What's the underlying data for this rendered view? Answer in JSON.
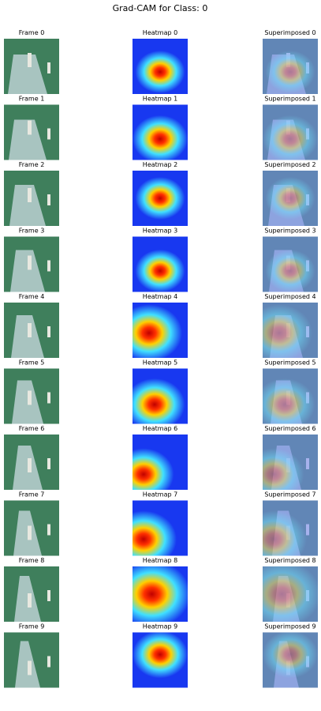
{
  "title": "Grad-CAM for Class: 0",
  "rows": [
    {
      "frame": "Frame 0",
      "heatmap": "Heatmap 0",
      "superimposed": "Superimposed 0"
    },
    {
      "frame": "Frame 1",
      "heatmap": "Heatmap 1",
      "superimposed": "Superimposed 1"
    },
    {
      "frame": "Frame 2",
      "heatmap": "Heatmap 2",
      "superimposed": "Superimposed 2"
    },
    {
      "frame": "Frame 3",
      "heatmap": "Heatmap 3",
      "superimposed": "Superimposed 3"
    },
    {
      "frame": "Frame 4",
      "heatmap": "Heatmap 4",
      "superimposed": "Superimposed 4"
    },
    {
      "frame": "Frame 5",
      "heatmap": "Heatmap 5",
      "superimposed": "Superimposed 5"
    },
    {
      "frame": "Frame 6",
      "heatmap": "Heatmap 6",
      "superimposed": "Superimposed 6"
    },
    {
      "frame": "Frame 7",
      "heatmap": "Heatmap 7",
      "superimposed": "Superimposed 7"
    },
    {
      "frame": "Frame 8",
      "heatmap": "Heatmap 8",
      "superimposed": "Superimposed 8"
    },
    {
      "frame": "Frame 9",
      "heatmap": "Heatmap 9",
      "superimposed": "Superimposed 9"
    }
  ]
}
